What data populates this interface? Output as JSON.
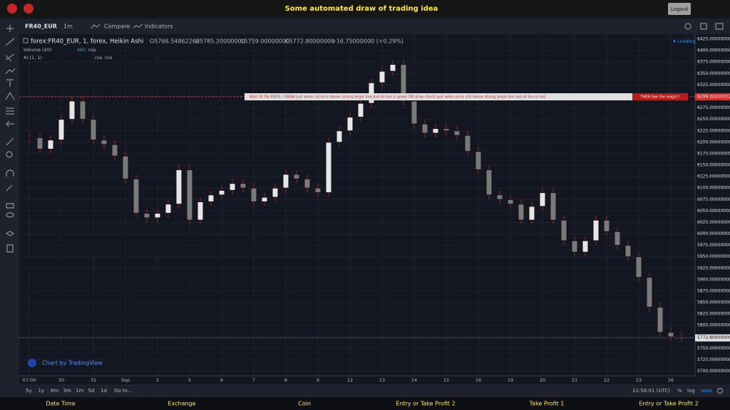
{
  "header": {
    "title": "Some automated draw of trading idea",
    "logout": "Logout"
  },
  "toolbar": {
    "symbol": "FR40_EUR",
    "interval": "1m",
    "compare": "Compare",
    "indicators": "Indicators"
  },
  "legend": {
    "series_title": "forex:FR40_EUR, 1, forex, Heikin Ashi",
    "open": "O5766.54862262",
    "high": "H5785.20000000",
    "low": "L5759.00000000",
    "close": "C5772.80000000",
    "change": "+16.75000000 (+0.29%)"
  },
  "volume_legend": {
    "name": "Volume (20)",
    "value": "482",
    "extra": "n/a"
  },
  "ai_legend": {
    "name": "AI (1, 1)",
    "values": [
      "n/a",
      "n/a"
    ]
  },
  "loading": "Loading",
  "banner": {
    "text": "Wait till flip ENDS !   DRAW just when:  price is above strong angle line and AI line is green        OR        draw shorts just when price still below strong angle line and AI line is red",
    "magic": "THEN See the magic!!"
  },
  "watermark": "Chart by TradingView",
  "bottom_bar": {
    "ranges": [
      "5y",
      "1y",
      "6m",
      "3m",
      "1m",
      "5d",
      "1d"
    ],
    "goto": "Go to...",
    "clock": "11:58:01 (UTC)",
    "percent": "%",
    "log": "log",
    "auto": "auto"
  },
  "footer": [
    "Date Time",
    "Exchange",
    "Coin",
    "Entry or Take Profit 2",
    "Take Profit 1",
    "Entry or Take Profit 2"
  ],
  "chart_data": {
    "type": "candlestick",
    "categories": [
      "07:00",
      null,
      null,
      "30",
      null,
      null,
      "31",
      null,
      null,
      "Sep",
      null,
      null,
      "2",
      null,
      null,
      "5",
      null,
      null,
      "6",
      null,
      null,
      "7",
      null,
      null,
      "8",
      null,
      null,
      "9",
      null,
      null,
      "12",
      null,
      null,
      "13",
      null,
      null,
      "14",
      null,
      null,
      "15",
      null,
      null,
      "16",
      null,
      null,
      "19",
      null,
      null,
      "20",
      null,
      null,
      "21",
      null,
      null,
      "22",
      null,
      null,
      "23",
      null,
      null,
      "26",
      null
    ],
    "close": [
      6210,
      6185,
      6205,
      6250,
      6290,
      6250,
      6205,
      6195,
      6170,
      6120,
      6045,
      6035,
      6045,
      6065,
      6140,
      6030,
      6070,
      6085,
      6095,
      6110,
      6100,
      6070,
      6080,
      6100,
      6130,
      6120,
      6100,
      6090,
      6200,
      6225,
      6255,
      6285,
      6330,
      6355,
      6370,
      6290,
      6240,
      6220,
      6230,
      6225,
      6215,
      6180,
      6140,
      6085,
      6075,
      6065,
      6030,
      6060,
      6090,
      6030,
      5985,
      5960,
      5985,
      6030,
      6005,
      5975,
      5950,
      5905,
      5840,
      5785,
      5775,
      5772.8
    ],
    "up_color": "#e6e6e6",
    "down_color": "#7a7a7a",
    "wick_color": "#b71c1c",
    "ylim": [
      5690,
      6436
    ],
    "yticks": [
      {
        "value": 5700,
        "label": "5700.00000000"
      },
      {
        "value": 5725,
        "label": "5725.00000000"
      },
      {
        "value": 5750,
        "label": "5750.00000000"
      },
      {
        "value": 5775,
        "label": "5775.00000000"
      },
      {
        "value": 5800,
        "label": "5800.00000000"
      },
      {
        "value": 5825,
        "label": "5825.00000000"
      },
      {
        "value": 5850,
        "label": "5850.00000000"
      },
      {
        "value": 5875,
        "label": "5875.00000000"
      },
      {
        "value": 5900,
        "label": "5900.00000000"
      },
      {
        "value": 5925,
        "label": "5925.00000000"
      },
      {
        "value": 5950,
        "label": "5950.00000000"
      },
      {
        "value": 5975,
        "label": "5975.00000000"
      },
      {
        "value": 6000,
        "label": "6000.00000000"
      },
      {
        "value": 6025,
        "label": "6025.00000000"
      },
      {
        "value": 6050,
        "label": "6050.00000000"
      },
      {
        "value": 6075,
        "label": "6075.00000000"
      },
      {
        "value": 6100,
        "label": "6100.00000000"
      },
      {
        "value": 6125,
        "label": "6125.00000000"
      },
      {
        "value": 6150,
        "label": "6150.00000000"
      },
      {
        "value": 6175,
        "label": "6175.00000000"
      },
      {
        "value": 6200,
        "label": "6200.00000000"
      },
      {
        "value": 6225,
        "label": "6225.00000000"
      },
      {
        "value": 6250,
        "label": "6250.00000000"
      },
      {
        "value": 6275,
        "label": "6275.00000000"
      },
      {
        "value": 6300,
        "label": "6300.00000000"
      },
      {
        "value": 6325,
        "label": "6325.00000000"
      },
      {
        "value": 6350,
        "label": "6350.00000000"
      },
      {
        "value": 6375,
        "label": "6375.00000000"
      },
      {
        "value": 6400,
        "label": "6400.00000000"
      },
      {
        "value": 6425,
        "label": "6425.00000000"
      }
    ],
    "grid": true,
    "hline": {
      "value": 6299.30209372,
      "color": "#d32f2f"
    },
    "last_price": {
      "value": 5772.8,
      "label": "5772.80000000"
    }
  }
}
